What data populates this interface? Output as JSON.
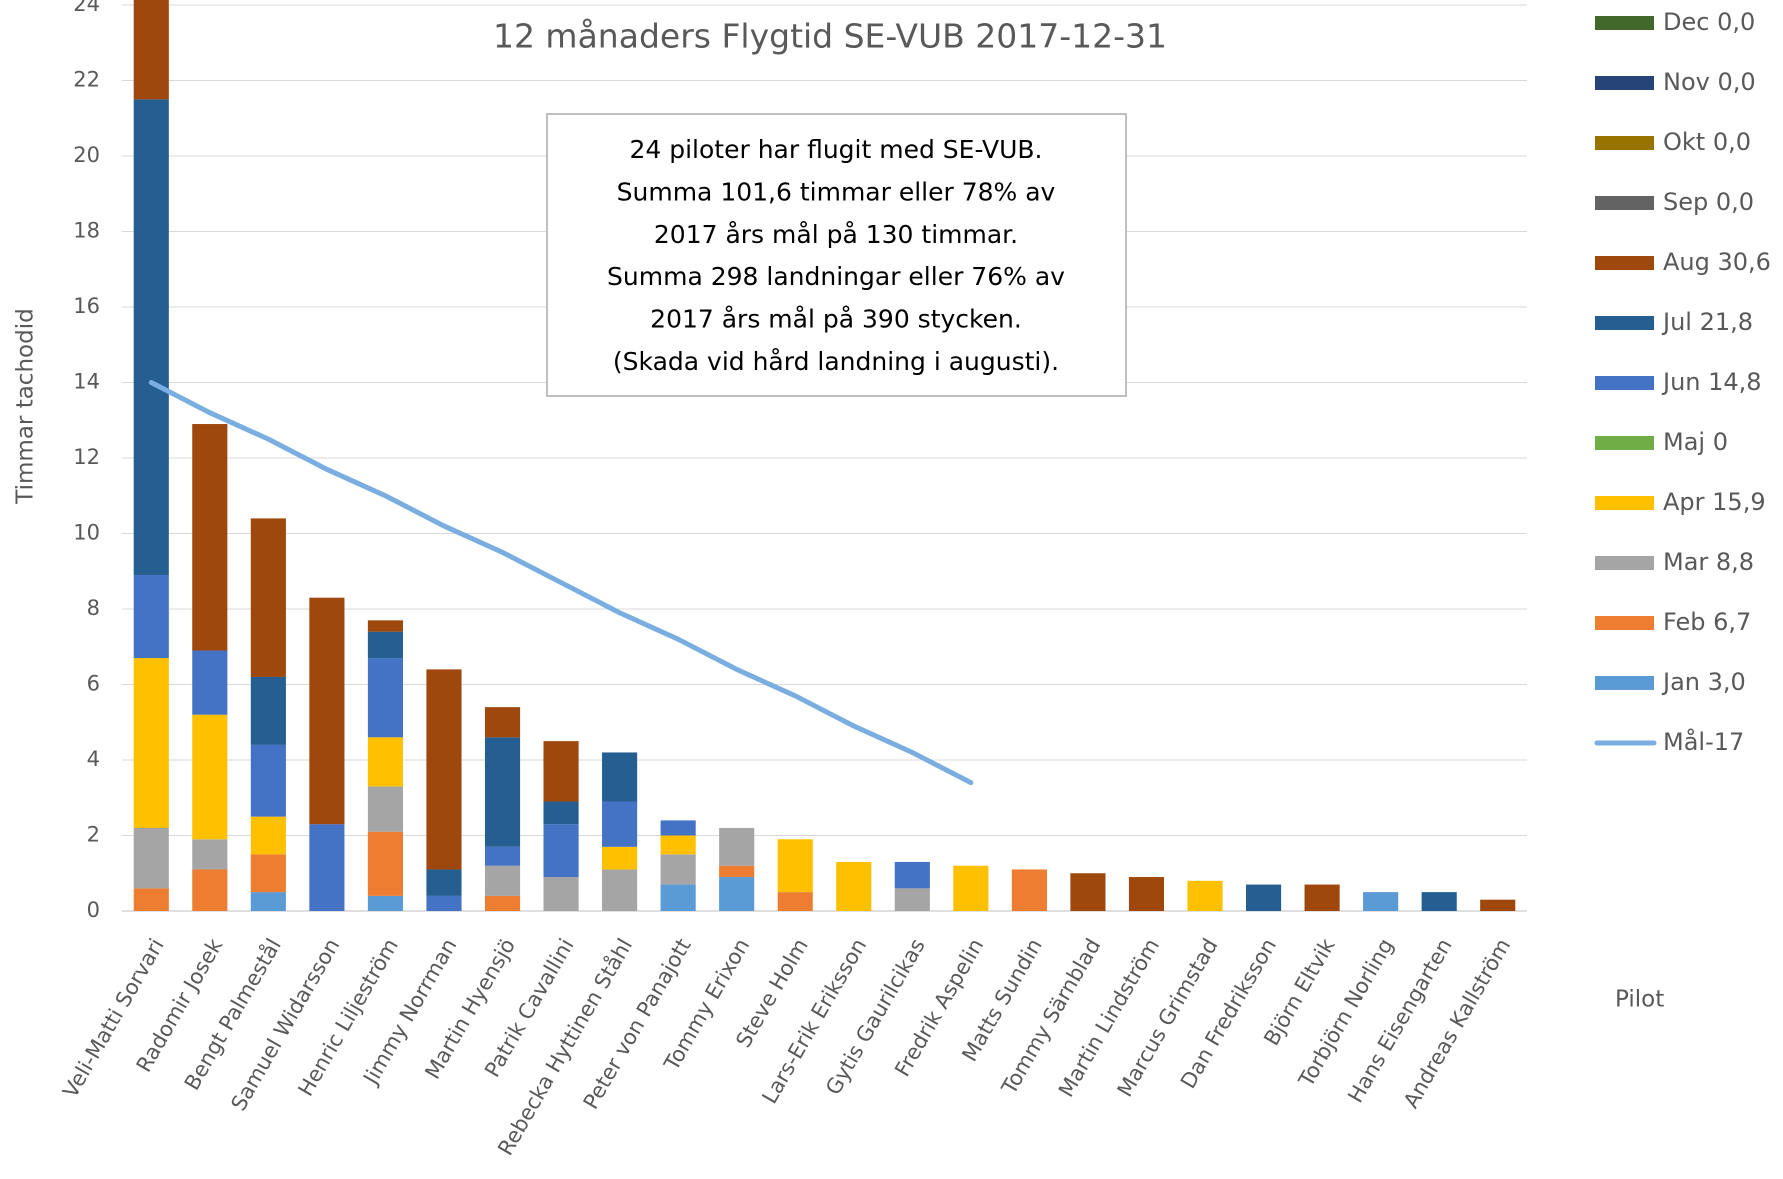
{
  "chart_data": {
    "type": "bar",
    "stacked": true,
    "title": "12 månaders Flygtid SE-VUB 2017-12-31",
    "y_label": "Timmar tachodid",
    "x_label": "Pilot",
    "annotation": [
      "24 piloter har flugit med SE-VUB.",
      "Summa 101,6 timmar eller 78% av",
      "2017 års mål på 130 timmar.",
      "Summa 298 landningar eller 76% av",
      "2017 års mål på 390 stycken.",
      "(Skada vid hård landning i augusti)."
    ],
    "categories": [
      "Veli-Matti Sorvari",
      "Radomir Josek",
      "Bengt Palmestål",
      "Samuel Widarsson",
      "Henric Liljeström",
      "Jimmy Norrman",
      "Martin Hyensjö",
      "Patrik Cavallini",
      "Rebecka Hyttinen Ståhl",
      "Peter von Panajott",
      "Tommy Erixon",
      "Steve Holm",
      "Lars-Erik Eriksson",
      "Gytis Gaurilcikas",
      "Fredrik Aspelin",
      "Matts Sundin",
      "Tommy Särnblad",
      "Martin Lindström",
      "Marcus  Grimstad",
      "Dan Fredriksson",
      "Björn Eltvik",
      "Torbjörn Norling",
      "Hans Eisengarten",
      "Andreas Kallström"
    ],
    "ylim": [
      0,
      24
    ],
    "yticks": [
      0,
      2,
      4,
      6,
      8,
      10,
      12,
      14,
      16,
      18,
      20,
      22,
      24
    ],
    "grid": true,
    "legend": "right",
    "series": [
      {
        "name": "Jan 3,0",
        "color": "#5b9bd5",
        "values": [
          0,
          0,
          0.5,
          0,
          0.4,
          0,
          0,
          0,
          0,
          0.7,
          0.9,
          0,
          0,
          0,
          0,
          0,
          0,
          0,
          0,
          0,
          0,
          0.5,
          0,
          0
        ]
      },
      {
        "name": "Feb 6,7",
        "color": "#ed7d31",
        "values": [
          0.6,
          1.1,
          1.0,
          0,
          1.7,
          0,
          0.4,
          0,
          0,
          0,
          0.3,
          0.5,
          0,
          0,
          0,
          1.1,
          0,
          0,
          0,
          0,
          0,
          0,
          0,
          0
        ]
      },
      {
        "name": "Mar 8,8",
        "color": "#a5a5a5",
        "values": [
          1.6,
          0.8,
          0,
          0,
          1.2,
          0,
          0.8,
          0.9,
          1.1,
          0.8,
          1.0,
          0,
          0,
          0.6,
          0,
          0,
          0,
          0,
          0,
          0,
          0,
          0,
          0,
          0
        ]
      },
      {
        "name": "Apr 15,9",
        "color": "#ffc000",
        "values": [
          4.5,
          3.3,
          1.0,
          0,
          1.3,
          0,
          0,
          0,
          0.6,
          0.5,
          0,
          1.4,
          1.3,
          0,
          1.2,
          0,
          0,
          0,
          0.8,
          0,
          0,
          0,
          0,
          0
        ]
      },
      {
        "name": "Maj 0",
        "color": "#70ad47",
        "values": [
          0,
          0,
          0,
          0,
          0,
          0,
          0,
          0,
          0,
          0,
          0,
          0,
          0,
          0,
          0,
          0,
          0,
          0,
          0,
          0,
          0,
          0,
          0,
          0
        ]
      },
      {
        "name": "Jun 14,8",
        "color": "#4472c4",
        "values": [
          2.2,
          1.7,
          1.9,
          2.3,
          2.1,
          0.4,
          0.5,
          1.4,
          1.2,
          0.4,
          0,
          0,
          0,
          0.7,
          0,
          0,
          0,
          0,
          0,
          0,
          0,
          0,
          0,
          0
        ]
      },
      {
        "name": "Jul 21,8",
        "color": "#255e91",
        "values": [
          12.6,
          0,
          1.8,
          0,
          0.7,
          0.7,
          2.9,
          0.6,
          1.3,
          0,
          0,
          0,
          0,
          0,
          0,
          0,
          0,
          0,
          0,
          0.7,
          0,
          0,
          0.5,
          0
        ]
      },
      {
        "name": "Aug 30,6",
        "color": "#9e480e",
        "values": [
          3.5,
          6.0,
          4.2,
          6.0,
          0.3,
          5.3,
          0.8,
          1.6,
          0,
          0,
          0,
          0,
          0,
          0,
          0,
          0,
          1.0,
          0.9,
          0,
          0,
          0.7,
          0,
          0,
          0.3
        ]
      },
      {
        "name": "Sep 0,0",
        "color": "#636363",
        "values": [
          0,
          0,
          0,
          0,
          0,
          0,
          0,
          0,
          0,
          0,
          0,
          0,
          0,
          0,
          0,
          0,
          0,
          0,
          0,
          0,
          0,
          0,
          0,
          0
        ]
      },
      {
        "name": "Okt 0,0",
        "color": "#997300",
        "values": [
          0,
          0,
          0,
          0,
          0,
          0,
          0,
          0,
          0,
          0,
          0,
          0,
          0,
          0,
          0,
          0,
          0,
          0,
          0,
          0,
          0,
          0,
          0,
          0
        ]
      },
      {
        "name": "Nov 0,0",
        "color": "#264478",
        "values": [
          0,
          0,
          0,
          0,
          0,
          0,
          0,
          0,
          0,
          0,
          0,
          0,
          0,
          0,
          0,
          0,
          0,
          0,
          0,
          0,
          0,
          0,
          0,
          0
        ]
      },
      {
        "name": "Dec 0,0",
        "color": "#43682b",
        "values": [
          0,
          0,
          0,
          0,
          0,
          0,
          0,
          0,
          0,
          0,
          0,
          0,
          0,
          0,
          0,
          0,
          0,
          0,
          0,
          0,
          0,
          0,
          0,
          0
        ]
      },
      {
        "name": "Mål-17",
        "type": "line",
        "color": "#7aaee0",
        "values": [
          14.0,
          13.2,
          12.5,
          11.7,
          11.0,
          10.2,
          9.5,
          8.7,
          7.9,
          7.2,
          6.4,
          5.7,
          4.9,
          4.2,
          3.4,
          null,
          null,
          null,
          null,
          null,
          null,
          null,
          null,
          null
        ]
      }
    ]
  }
}
